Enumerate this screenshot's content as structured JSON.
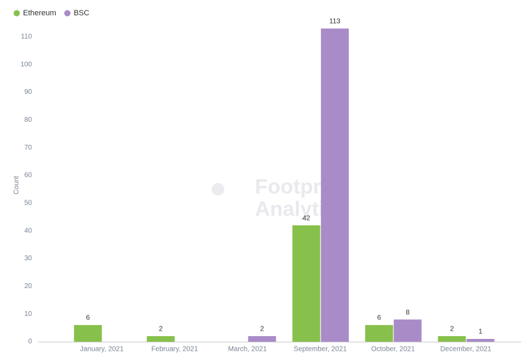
{
  "chart_data": {
    "type": "bar",
    "categories": [
      "January, 2021",
      "February, 2021",
      "March, 2021",
      "September, 2021",
      "October, 2021",
      "December, 2021"
    ],
    "series": [
      {
        "name": "Ethereum",
        "color": "#87c04b",
        "values": [
          6,
          2,
          null,
          42,
          6,
          2
        ]
      },
      {
        "name": "BSC",
        "color": "#a98bc8",
        "values": [
          null,
          null,
          2,
          113,
          8,
          1
        ]
      }
    ],
    "ylabel": "Count",
    "ylim": [
      0,
      113
    ],
    "yticks": [
      0,
      10,
      20,
      30,
      40,
      50,
      60,
      70,
      80,
      90,
      100,
      110
    ],
    "grid": false,
    "legend": "top-left",
    "watermark": [
      "Footprint",
      "Analytics"
    ]
  }
}
